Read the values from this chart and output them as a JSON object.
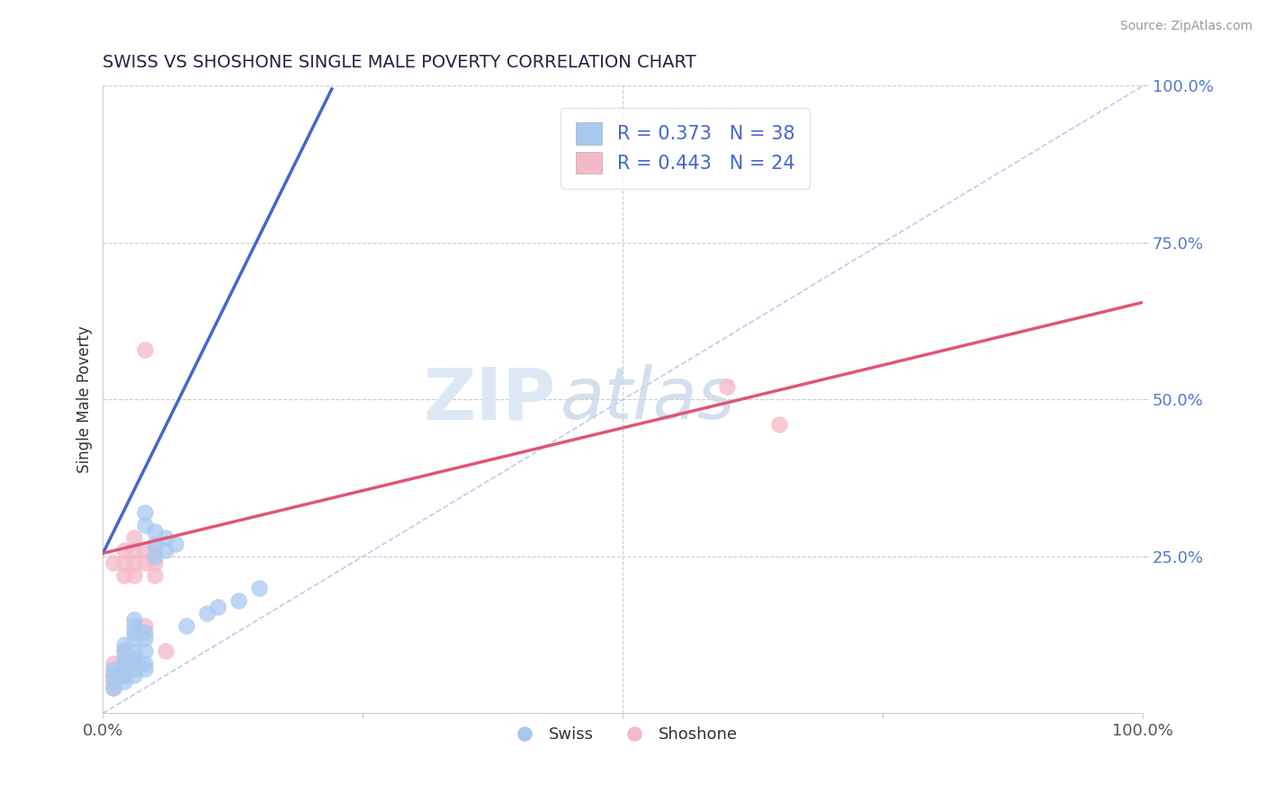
{
  "title": "SWISS VS SHOSHONE SINGLE MALE POVERTY CORRELATION CHART",
  "source": "Source: ZipAtlas.com",
  "ylabel": "Single Male Poverty",
  "xlim": [
    0,
    1.0
  ],
  "ylim": [
    0,
    1.0
  ],
  "swiss_R": 0.373,
  "swiss_N": 38,
  "shoshone_R": 0.443,
  "shoshone_N": 24,
  "swiss_color": "#a8c8f0",
  "shoshone_color": "#f5b8c8",
  "swiss_line_color": "#4466cc",
  "shoshone_line_color": "#e05575",
  "ref_line_color": "#bbccee",
  "background_color": "#ffffff",
  "title_color": "#222244",
  "axis_label_color": "#5577cc",
  "watermark_color": "#dde8f5",
  "swiss_x": [
    0.01,
    0.01,
    0.01,
    0.01,
    0.02,
    0.02,
    0.02,
    0.02,
    0.02,
    0.02,
    0.02,
    0.03,
    0.03,
    0.03,
    0.03,
    0.03,
    0.03,
    0.03,
    0.03,
    0.03,
    0.04,
    0.04,
    0.04,
    0.04,
    0.04,
    0.04,
    0.04,
    0.05,
    0.05,
    0.05,
    0.06,
    0.06,
    0.07,
    0.08,
    0.1,
    0.11,
    0.13,
    0.15
  ],
  "swiss_y": [
    0.04,
    0.05,
    0.06,
    0.07,
    0.05,
    0.06,
    0.07,
    0.08,
    0.09,
    0.1,
    0.11,
    0.06,
    0.07,
    0.08,
    0.09,
    0.1,
    0.12,
    0.13,
    0.14,
    0.15,
    0.07,
    0.08,
    0.1,
    0.12,
    0.13,
    0.3,
    0.32,
    0.25,
    0.27,
    0.29,
    0.26,
    0.28,
    0.27,
    0.14,
    0.16,
    0.17,
    0.18,
    0.2
  ],
  "shoshone_x": [
    0.01,
    0.01,
    0.01,
    0.01,
    0.02,
    0.02,
    0.02,
    0.02,
    0.02,
    0.02,
    0.03,
    0.03,
    0.03,
    0.03,
    0.04,
    0.04,
    0.04,
    0.04,
    0.05,
    0.05,
    0.05,
    0.06,
    0.6,
    0.65
  ],
  "shoshone_y": [
    0.04,
    0.06,
    0.08,
    0.24,
    0.06,
    0.08,
    0.1,
    0.22,
    0.24,
    0.26,
    0.22,
    0.24,
    0.26,
    0.28,
    0.24,
    0.26,
    0.14,
    0.58,
    0.22,
    0.24,
    0.26,
    0.1,
    0.52,
    0.46
  ],
  "swiss_trend_x0": 0.0,
  "swiss_trend_x1": 0.22,
  "swiss_trend_y0": 0.255,
  "swiss_trend_y1": 0.995,
  "shoshone_trend_x0": 0.0,
  "shoshone_trend_x1": 1.0,
  "shoshone_trend_y0": 0.255,
  "shoshone_trend_y1": 0.655
}
